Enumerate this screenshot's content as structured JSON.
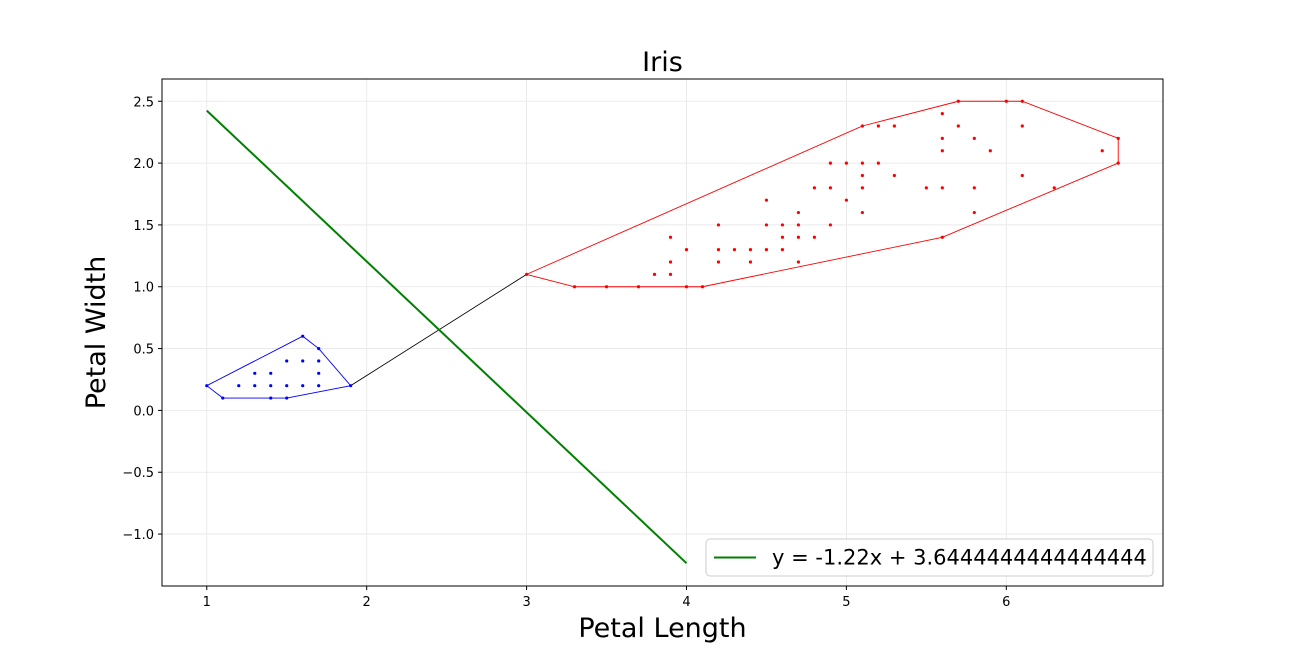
{
  "chart_data": {
    "type": "scatter",
    "title": "Iris",
    "xlabel": "Petal Length",
    "ylabel": "Petal Width",
    "xlim": [
      0.72,
      6.98
    ],
    "ylim": [
      -1.42,
      2.68
    ],
    "xticks": [
      1,
      2,
      3,
      4,
      5,
      6
    ],
    "yticks": [
      -1.0,
      -0.5,
      0.0,
      0.5,
      1.0,
      1.5,
      2.0,
      2.5
    ],
    "ytick_labels": [
      "−1.0",
      "−0.5",
      "0.0",
      "0.5",
      "1.0",
      "1.5",
      "2.0",
      "2.5"
    ],
    "xtick_labels": [
      "1",
      "2",
      "3",
      "4",
      "5",
      "6"
    ],
    "grid": true,
    "legend_position": "lower-right",
    "series": [
      {
        "color": "#0000ff",
        "kind": "scatter",
        "points": [
          [
            1.0,
            0.2
          ],
          [
            1.1,
            0.1
          ],
          [
            1.2,
            0.2
          ],
          [
            1.3,
            0.2
          ],
          [
            1.3,
            0.3
          ],
          [
            1.4,
            0.1
          ],
          [
            1.4,
            0.2
          ],
          [
            1.4,
            0.3
          ],
          [
            1.5,
            0.1
          ],
          [
            1.5,
            0.2
          ],
          [
            1.5,
            0.4
          ],
          [
            1.6,
            0.2
          ],
          [
            1.6,
            0.4
          ],
          [
            1.6,
            0.6
          ],
          [
            1.7,
            0.2
          ],
          [
            1.7,
            0.3
          ],
          [
            1.7,
            0.4
          ],
          [
            1.7,
            0.5
          ],
          [
            1.9,
            0.2
          ]
        ]
      },
      {
        "color": "#ff0000",
        "kind": "scatter",
        "points": [
          [
            3.0,
            1.1
          ],
          [
            3.3,
            1.0
          ],
          [
            3.5,
            1.0
          ],
          [
            3.7,
            1.0
          ],
          [
            3.8,
            1.1
          ],
          [
            3.9,
            1.1
          ],
          [
            3.9,
            1.2
          ],
          [
            3.9,
            1.4
          ],
          [
            4.0,
            1.0
          ],
          [
            4.0,
            1.3
          ],
          [
            4.1,
            1.0
          ],
          [
            4.2,
            1.2
          ],
          [
            4.2,
            1.3
          ],
          [
            4.2,
            1.5
          ],
          [
            4.3,
            1.3
          ],
          [
            4.4,
            1.2
          ],
          [
            4.4,
            1.3
          ],
          [
            4.5,
            1.3
          ],
          [
            4.5,
            1.5
          ],
          [
            4.5,
            1.7
          ],
          [
            4.6,
            1.3
          ],
          [
            4.6,
            1.4
          ],
          [
            4.6,
            1.5
          ],
          [
            4.7,
            1.2
          ],
          [
            4.7,
            1.4
          ],
          [
            4.7,
            1.5
          ],
          [
            4.7,
            1.6
          ],
          [
            4.8,
            1.4
          ],
          [
            4.8,
            1.8
          ],
          [
            4.9,
            1.5
          ],
          [
            4.9,
            1.8
          ],
          [
            4.9,
            2.0
          ],
          [
            5.0,
            1.7
          ],
          [
            5.0,
            2.0
          ],
          [
            5.1,
            1.6
          ],
          [
            5.1,
            1.8
          ],
          [
            5.1,
            1.9
          ],
          [
            5.1,
            2.0
          ],
          [
            5.1,
            2.3
          ],
          [
            5.2,
            2.0
          ],
          [
            5.2,
            2.3
          ],
          [
            5.3,
            1.9
          ],
          [
            5.3,
            2.3
          ],
          [
            5.5,
            1.8
          ],
          [
            5.6,
            1.4
          ],
          [
            5.6,
            1.8
          ],
          [
            5.6,
            2.1
          ],
          [
            5.6,
            2.2
          ],
          [
            5.6,
            2.4
          ],
          [
            5.7,
            2.3
          ],
          [
            5.7,
            2.5
          ],
          [
            5.8,
            1.6
          ],
          [
            5.8,
            1.8
          ],
          [
            5.8,
            2.2
          ],
          [
            5.9,
            2.1
          ],
          [
            6.0,
            2.5
          ],
          [
            6.1,
            1.9
          ],
          [
            6.1,
            2.3
          ],
          [
            6.1,
            2.5
          ],
          [
            6.3,
            1.8
          ],
          [
            6.6,
            2.1
          ],
          [
            6.7,
            2.0
          ],
          [
            6.7,
            2.2
          ]
        ]
      },
      {
        "color": "#0000ff",
        "kind": "polygon",
        "points": [
          [
            1.0,
            0.2
          ],
          [
            1.1,
            0.1
          ],
          [
            1.5,
            0.1
          ],
          [
            1.9,
            0.2
          ],
          [
            1.7,
            0.5
          ],
          [
            1.6,
            0.6
          ],
          [
            1.0,
            0.2
          ]
        ]
      },
      {
        "color": "#ff0000",
        "kind": "polygon",
        "points": [
          [
            3.0,
            1.1
          ],
          [
            3.3,
            1.0
          ],
          [
            4.1,
            1.0
          ],
          [
            5.6,
            1.4
          ],
          [
            6.7,
            2.0
          ],
          [
            6.7,
            2.2
          ],
          [
            6.1,
            2.5
          ],
          [
            5.7,
            2.5
          ],
          [
            5.1,
            2.3
          ],
          [
            3.0,
            1.1
          ]
        ]
      },
      {
        "color": "#000000",
        "kind": "line",
        "points": [
          [
            1.9,
            0.2
          ],
          [
            3.0,
            1.1
          ]
        ]
      },
      {
        "name": "y = -1.22x + 3.6444444444444444",
        "color": "#008000",
        "kind": "line",
        "points": [
          [
            1.0,
            2.424444444444444
          ],
          [
            4.0,
            -1.2355555555555555
          ]
        ]
      }
    ]
  }
}
